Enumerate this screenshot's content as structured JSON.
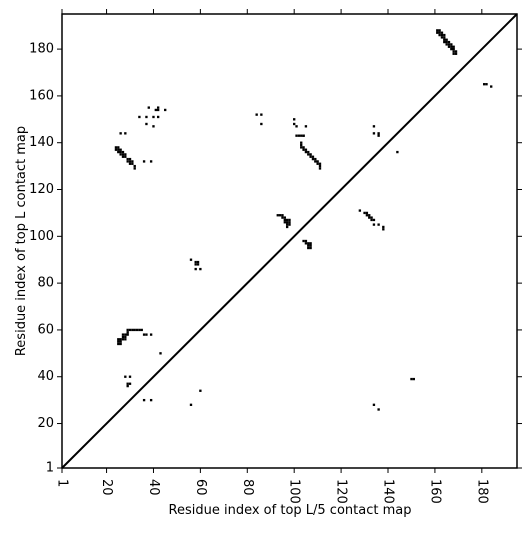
{
  "chart_data": {
    "type": "scatter",
    "title": "",
    "xlabel": "Residue index of top L/5 contact map",
    "ylabel": "Residue index of top L contact map",
    "xlim": [
      1,
      195
    ],
    "ylim": [
      1,
      195
    ],
    "x_ticks": [
      1,
      20,
      40,
      60,
      80,
      100,
      120,
      140,
      160,
      180
    ],
    "y_ticks": [
      1,
      20,
      40,
      60,
      80,
      100,
      120,
      140,
      160,
      180
    ],
    "grid": false,
    "legend": "none",
    "diagonal": true,
    "colors": {
      "contact": "#000000",
      "axis": "#000000",
      "background": "#ffffff"
    },
    "series": [
      {
        "points": [
          [
            161,
            188
          ],
          [
            162,
            188
          ],
          [
            161,
            187
          ],
          [
            162,
            187
          ],
          [
            163,
            187
          ],
          [
            162,
            186
          ],
          [
            163,
            186
          ],
          [
            164,
            186
          ],
          [
            163,
            185
          ],
          [
            164,
            185
          ],
          [
            164,
            184
          ],
          [
            165,
            184
          ],
          [
            164,
            183
          ],
          [
            165,
            183
          ],
          [
            166,
            183
          ],
          [
            165,
            182
          ],
          [
            166,
            182
          ],
          [
            167,
            182
          ],
          [
            166,
            181
          ],
          [
            167,
            181
          ],
          [
            168,
            181
          ],
          [
            167,
            180
          ],
          [
            168,
            180
          ],
          [
            168,
            179
          ],
          [
            169,
            179
          ],
          [
            168,
            178
          ],
          [
            169,
            178
          ],
          [
            181,
            165
          ],
          [
            182,
            165
          ],
          [
            184,
            164
          ],
          [
            101,
            143
          ],
          [
            102,
            143
          ],
          [
            103,
            143
          ],
          [
            104,
            143
          ],
          [
            103,
            140
          ],
          [
            103,
            139
          ],
          [
            103,
            138
          ],
          [
            104,
            138
          ],
          [
            104,
            137
          ],
          [
            105,
            137
          ],
          [
            105,
            136
          ],
          [
            106,
            136
          ],
          [
            106,
            135
          ],
          [
            107,
            135
          ],
          [
            107,
            134
          ],
          [
            108,
            134
          ],
          [
            108,
            133
          ],
          [
            109,
            133
          ],
          [
            109,
            132
          ],
          [
            110,
            132
          ],
          [
            110,
            131
          ],
          [
            111,
            131
          ],
          [
            111,
            130
          ],
          [
            111,
            129
          ],
          [
            100,
            150
          ],
          [
            100,
            148
          ],
          [
            101,
            147
          ],
          [
            105,
            147
          ],
          [
            104,
            143
          ],
          [
            24,
            138
          ],
          [
            25,
            138
          ],
          [
            24,
            137
          ],
          [
            25,
            137
          ],
          [
            26,
            137
          ],
          [
            25,
            136
          ],
          [
            26,
            136
          ],
          [
            27,
            136
          ],
          [
            26,
            135
          ],
          [
            27,
            135
          ],
          [
            28,
            135
          ],
          [
            27,
            134
          ],
          [
            28,
            134
          ],
          [
            29,
            133
          ],
          [
            30,
            133
          ],
          [
            29,
            132
          ],
          [
            30,
            132
          ],
          [
            31,
            132
          ],
          [
            30,
            131
          ],
          [
            31,
            131
          ],
          [
            32,
            130
          ],
          [
            32,
            129
          ],
          [
            36,
            132
          ],
          [
            39,
            132
          ],
          [
            26,
            144
          ],
          [
            28,
            144
          ],
          [
            34,
            151
          ],
          [
            37,
            151
          ],
          [
            37,
            148
          ],
          [
            38,
            155
          ],
          [
            40,
            151
          ],
          [
            40,
            147
          ],
          [
            41,
            154
          ],
          [
            42,
            154
          ],
          [
            42,
            151
          ],
          [
            42,
            155
          ],
          [
            45,
            154
          ],
          [
            84,
            152
          ],
          [
            86,
            152
          ],
          [
            86,
            148
          ],
          [
            134,
            147
          ],
          [
            134,
            144
          ],
          [
            136,
            144
          ],
          [
            136,
            143
          ],
          [
            144,
            136
          ],
          [
            93,
            109
          ],
          [
            94,
            109
          ],
          [
            95,
            109
          ],
          [
            95,
            108
          ],
          [
            96,
            108
          ],
          [
            96,
            107
          ],
          [
            97,
            107
          ],
          [
            98,
            107
          ],
          [
            96,
            106
          ],
          [
            97,
            106
          ],
          [
            98,
            106
          ],
          [
            97,
            105
          ],
          [
            98,
            105
          ],
          [
            97,
            104
          ],
          [
            104,
            98
          ],
          [
            105,
            98
          ],
          [
            105,
            97
          ],
          [
            106,
            97
          ],
          [
            107,
            97
          ],
          [
            106,
            96
          ],
          [
            107,
            96
          ],
          [
            106,
            95
          ],
          [
            107,
            95
          ],
          [
            128,
            111
          ],
          [
            130,
            110
          ],
          [
            131,
            110
          ],
          [
            131,
            109
          ],
          [
            132,
            109
          ],
          [
            132,
            108
          ],
          [
            133,
            108
          ],
          [
            133,
            107
          ],
          [
            134,
            107
          ],
          [
            134,
            105
          ],
          [
            136,
            105
          ],
          [
            138,
            104
          ],
          [
            138,
            103
          ],
          [
            25,
            56
          ],
          [
            26,
            56
          ],
          [
            25,
            55
          ],
          [
            26,
            55
          ],
          [
            25,
            54
          ],
          [
            26,
            54
          ],
          [
            27,
            58
          ],
          [
            28,
            58
          ],
          [
            27,
            57
          ],
          [
            28,
            57
          ],
          [
            27,
            56
          ],
          [
            28,
            56
          ],
          [
            29,
            60
          ],
          [
            30,
            60
          ],
          [
            31,
            60
          ],
          [
            32,
            60
          ],
          [
            33,
            60
          ],
          [
            34,
            60
          ],
          [
            35,
            60
          ],
          [
            29,
            59
          ],
          [
            29,
            58
          ],
          [
            36,
            58
          ],
          [
            37,
            58
          ],
          [
            39,
            58
          ],
          [
            43,
            50
          ],
          [
            28,
            40
          ],
          [
            30,
            40
          ],
          [
            29,
            37
          ],
          [
            30,
            37
          ],
          [
            29,
            36
          ],
          [
            36,
            30
          ],
          [
            39,
            30
          ],
          [
            56,
            90
          ],
          [
            58,
            89
          ],
          [
            59,
            89
          ],
          [
            58,
            88
          ],
          [
            59,
            88
          ],
          [
            58,
            86
          ],
          [
            60,
            86
          ],
          [
            60,
            34
          ],
          [
            56,
            28
          ],
          [
            134,
            28
          ],
          [
            136,
            26
          ],
          [
            151,
            39
          ],
          [
            150,
            39
          ]
        ]
      }
    ]
  }
}
